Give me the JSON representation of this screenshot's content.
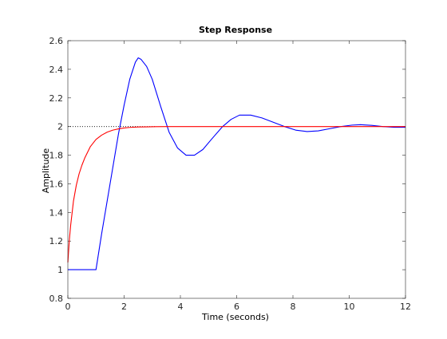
{
  "chart_data": {
    "type": "line",
    "title": "Step Response",
    "xlabel": "Time (seconds)",
    "ylabel": "Amplitude",
    "xlim": [
      0,
      12
    ],
    "ylim": [
      0.8,
      2.6
    ],
    "x_ticks": [
      "0",
      "2",
      "4",
      "6",
      "8",
      "10",
      "12"
    ],
    "y_ticks": [
      "0.8",
      "1",
      "1.2",
      "1.4",
      "1.6",
      "1.8",
      "2",
      "2.2",
      "2.4",
      "2.6"
    ],
    "grid": false,
    "reference_line": {
      "y": 2,
      "x_end": 3.1,
      "style": "dotted",
      "color": "#000000"
    },
    "series": [
      {
        "color": "#0000ff",
        "x": [
          0,
          1.0,
          1.2,
          1.5,
          1.8,
          2.0,
          2.2,
          2.4,
          2.5,
          2.6,
          2.8,
          3.0,
          3.3,
          3.6,
          3.9,
          4.2,
          4.5,
          4.8,
          5.1,
          5.5,
          5.8,
          6.1,
          6.5,
          6.9,
          7.3,
          7.7,
          8.1,
          8.5,
          8.9,
          9.3,
          9.7,
          10.1,
          10.4,
          10.8,
          11.2,
          11.6,
          12.0
        ],
        "y": [
          1.0,
          1.0,
          1.25,
          1.6,
          1.95,
          2.15,
          2.33,
          2.45,
          2.48,
          2.47,
          2.42,
          2.33,
          2.14,
          1.96,
          1.85,
          1.8,
          1.8,
          1.84,
          1.91,
          2.0,
          2.05,
          2.08,
          2.08,
          2.06,
          2.03,
          2.0,
          1.975,
          1.965,
          1.97,
          1.985,
          2.0,
          2.01,
          2.013,
          2.008,
          2.0,
          1.995,
          1.995
        ]
      },
      {
        "color": "#ff0000",
        "x": [
          0,
          0.05,
          0.1,
          0.2,
          0.3,
          0.4,
          0.5,
          0.6,
          0.8,
          1.0,
          1.2,
          1.4,
          1.6,
          1.8,
          2.0,
          2.2,
          2.5,
          2.8,
          3.1,
          3.5,
          4.0,
          5.0,
          6.0,
          8.0,
          10.0,
          12.0
        ],
        "y": [
          1.05,
          1.2,
          1.31,
          1.48,
          1.59,
          1.67,
          1.73,
          1.78,
          1.86,
          1.91,
          1.94,
          1.961,
          1.975,
          1.984,
          1.99,
          1.994,
          1.997,
          1.998,
          1.999,
          2.0,
          2.0,
          2.0,
          2.0,
          2.0,
          2.0,
          2.0
        ]
      }
    ]
  }
}
